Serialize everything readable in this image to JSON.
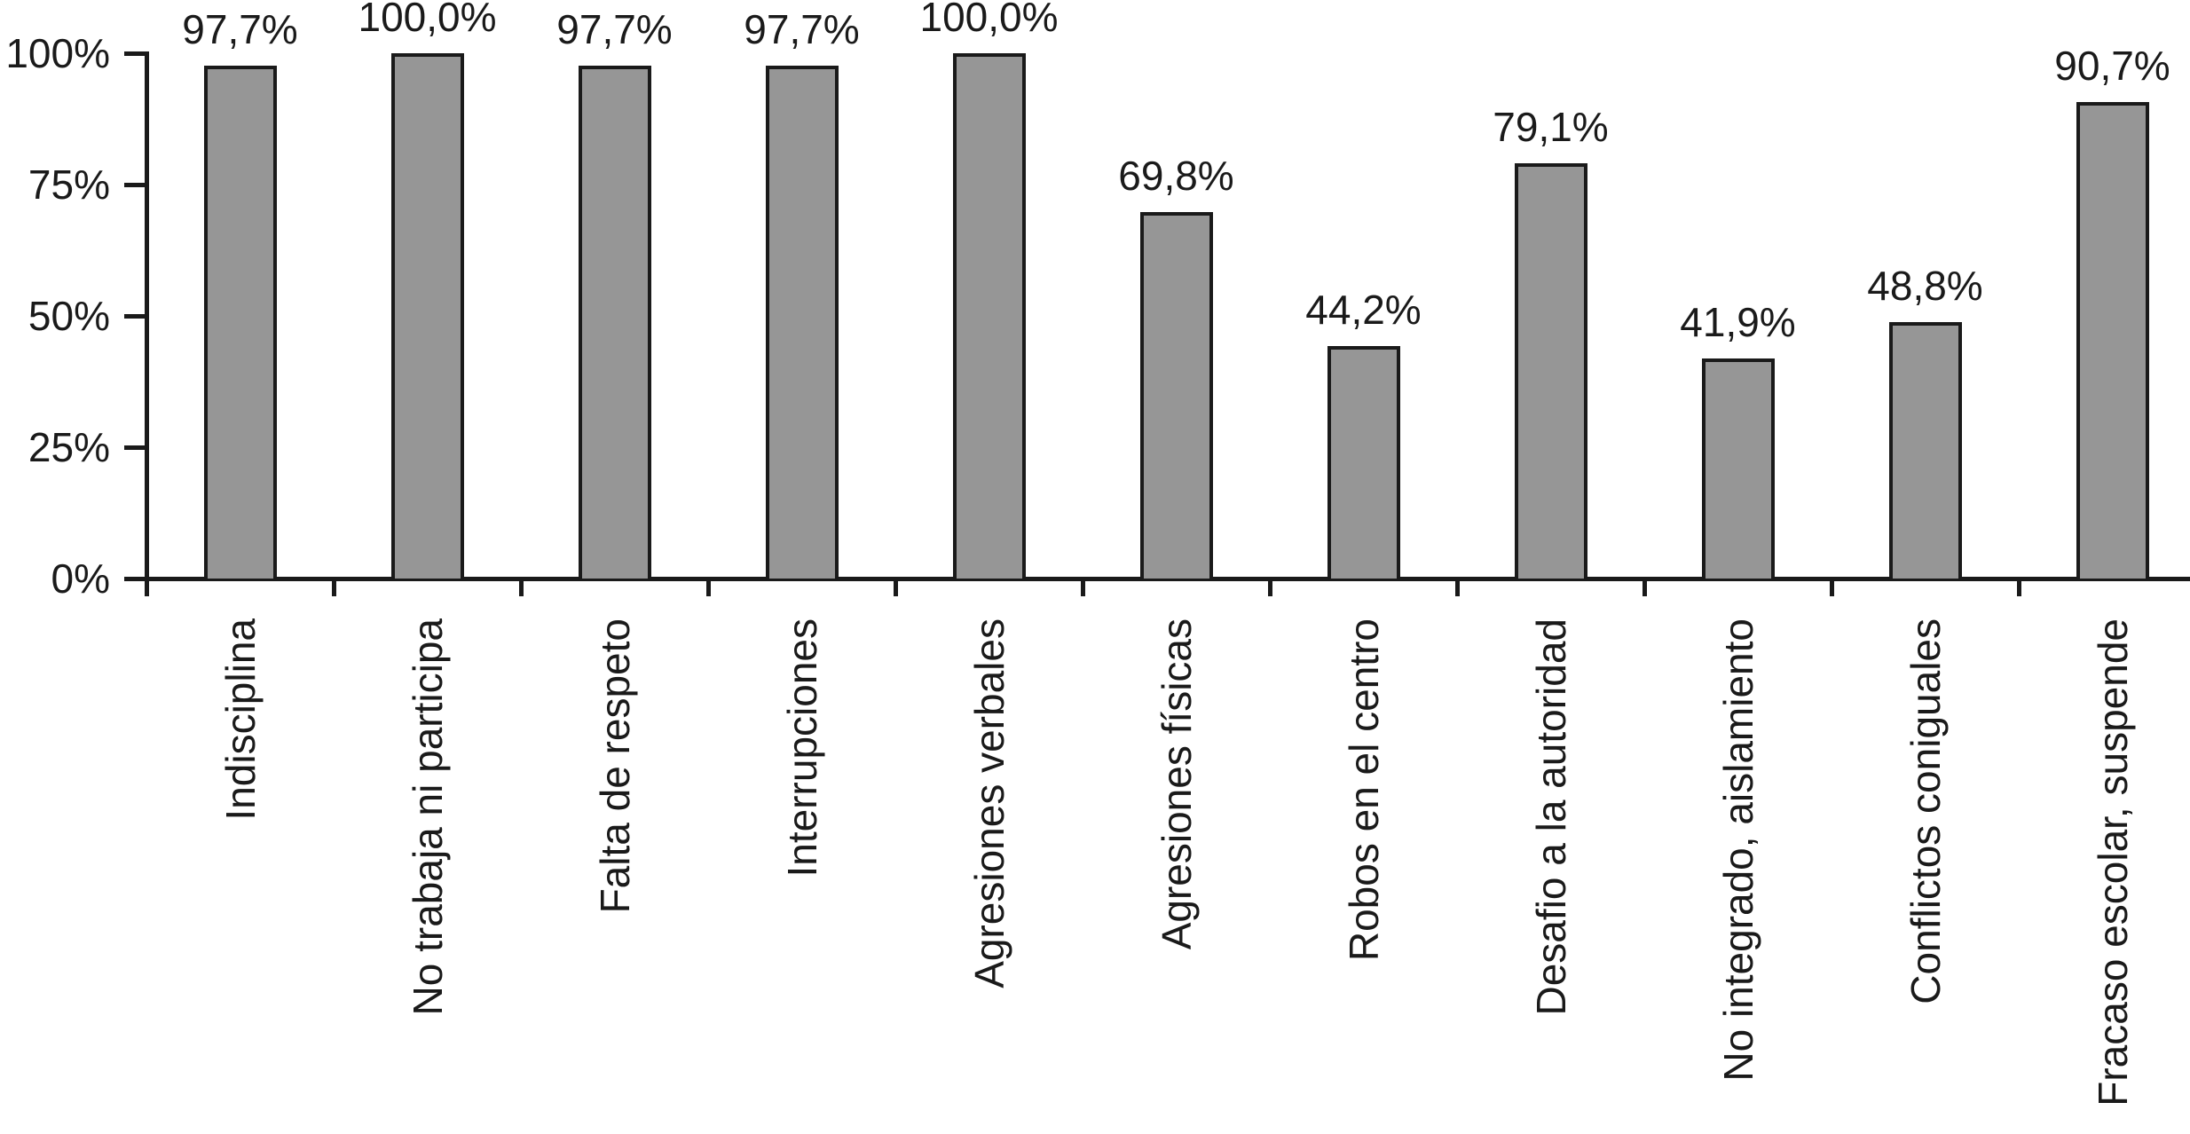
{
  "chart_data": {
    "type": "bar",
    "categories": [
      "Indisciplina",
      "No trabaja ni participa",
      "Falta de respeto",
      "Interrupciones",
      "Agresiones verbales",
      "Agresiones físicas",
      "Robos en el centro",
      "Desafio a la autoridad",
      "No integrado, aislamiento",
      "Conflictos coniguales",
      "Fracaso escolar, suspende"
    ],
    "values": [
      97.7,
      100.0,
      97.7,
      97.7,
      100.0,
      69.8,
      44.2,
      79.1,
      41.9,
      48.8,
      90.7
    ],
    "value_labels": [
      "97,7%",
      "100,0%",
      "97,7%",
      "97,7%",
      "100,0%",
      "69,8%",
      "44,2%",
      "79,1%",
      "41,9%",
      "48,8%",
      "90,7%"
    ],
    "y_tick_values": [
      0,
      25,
      50,
      75,
      100
    ],
    "y_tick_labels": [
      "0%",
      "25%",
      "50%",
      "75%",
      "100%"
    ],
    "ylim": [
      0,
      100
    ],
    "grid": false,
    "legend_position": "none",
    "bar_fill_color": "#969696",
    "bar_border_color": "#1a1a1a",
    "axis_color": "#1a1a1a",
    "text_color": "#1a1a1a",
    "decimal_separator": ","
  }
}
